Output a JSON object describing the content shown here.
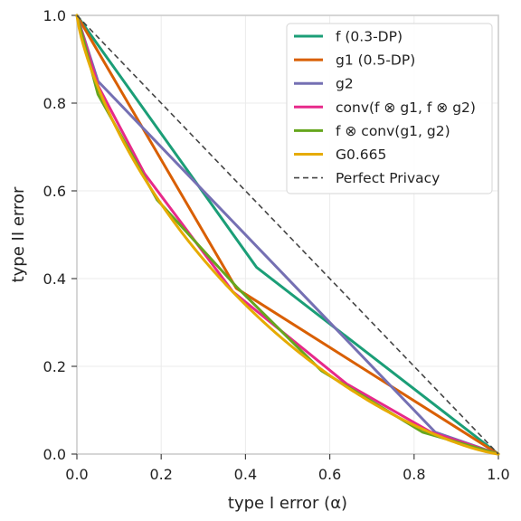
{
  "chart_data": {
    "type": "line",
    "title": "",
    "xlabel": "type I error (α)",
    "ylabel": "type II error",
    "xlim": [
      0,
      1
    ],
    "ylim": [
      0,
      1
    ],
    "xticks": [
      0.0,
      0.2,
      0.4,
      0.6,
      0.8,
      1.0
    ],
    "yticks": [
      0.0,
      0.2,
      0.4,
      0.6,
      0.8,
      1.0
    ],
    "xtick_labels": [
      "0.0",
      "0.2",
      "0.4",
      "0.6",
      "0.8",
      "1.0"
    ],
    "ytick_labels": [
      "0.0",
      "0.2",
      "0.4",
      "0.6",
      "0.8",
      "1.0"
    ],
    "grid": true,
    "legend_position": "top-right",
    "series": [
      {
        "name": "f (0.3-DP)",
        "color": "#1b9e77",
        "dash": "solid",
        "points": [
          [
            0,
            1
          ],
          [
            0.426,
            0.426
          ],
          [
            1,
            0
          ]
        ]
      },
      {
        "name": "g1 (0.5-DP)",
        "color": "#d95f02",
        "dash": "solid",
        "points": [
          [
            0,
            1
          ],
          [
            0.378,
            0.378
          ],
          [
            1,
            0
          ]
        ]
      },
      {
        "name": "g2",
        "color": "#7570b3",
        "dash": "solid",
        "points": [
          [
            0,
            1
          ],
          [
            0.05,
            0.85
          ],
          [
            0.61,
            0.29
          ],
          [
            0.85,
            0.05
          ],
          [
            1,
            0
          ]
        ]
      },
      {
        "name": "conv(f ⊗ g1, f ⊗ g2)",
        "color": "#e7298a",
        "dash": "solid",
        "points": [
          [
            0,
            1
          ],
          [
            0.05,
            0.84
          ],
          [
            0.16,
            0.64
          ],
          [
            0.37,
            0.37
          ],
          [
            0.64,
            0.16
          ],
          [
            0.84,
            0.05
          ],
          [
            1,
            0
          ]
        ]
      },
      {
        "name": "f ⊗ conv(g1, g2)",
        "color": "#66a61e",
        "dash": "solid",
        "points": [
          [
            0,
            1
          ],
          [
            0.05,
            0.82
          ],
          [
            0.19,
            0.58
          ],
          [
            0.38,
            0.38
          ],
          [
            0.58,
            0.19
          ],
          [
            0.82,
            0.05
          ],
          [
            1,
            0
          ]
        ]
      },
      {
        "name": "G0.665",
        "color": "#e6ab02",
        "dash": "solid",
        "function": "gaussian_tradeoff",
        "mu": 0.665
      },
      {
        "name": "Perfect Privacy",
        "color": "#444444",
        "dash": "dashed",
        "points": [
          [
            0,
            1
          ],
          [
            1,
            0
          ]
        ]
      }
    ]
  }
}
